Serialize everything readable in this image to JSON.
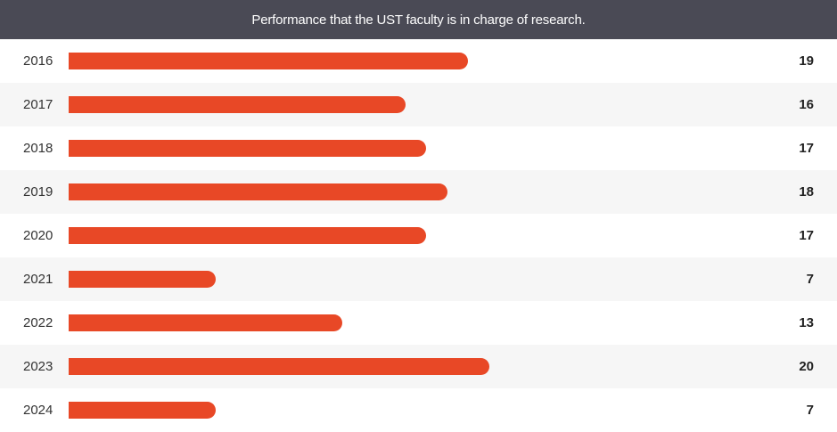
{
  "chart_data": {
    "type": "bar",
    "orientation": "horizontal",
    "title": "Performance that the UST faculty is in charge of research.",
    "categories": [
      "2016",
      "2017",
      "2018",
      "2019",
      "2020",
      "2021",
      "2022",
      "2023",
      "2024"
    ],
    "values": [
      19,
      16,
      17,
      18,
      17,
      7,
      13,
      20,
      7
    ],
    "xlim": [
      0,
      20
    ],
    "grid": false,
    "legend": "none",
    "colors": {
      "bar": "#e84826",
      "header_bg": "#4a4a55",
      "alt_row_bg": "#f6f6f6"
    }
  }
}
